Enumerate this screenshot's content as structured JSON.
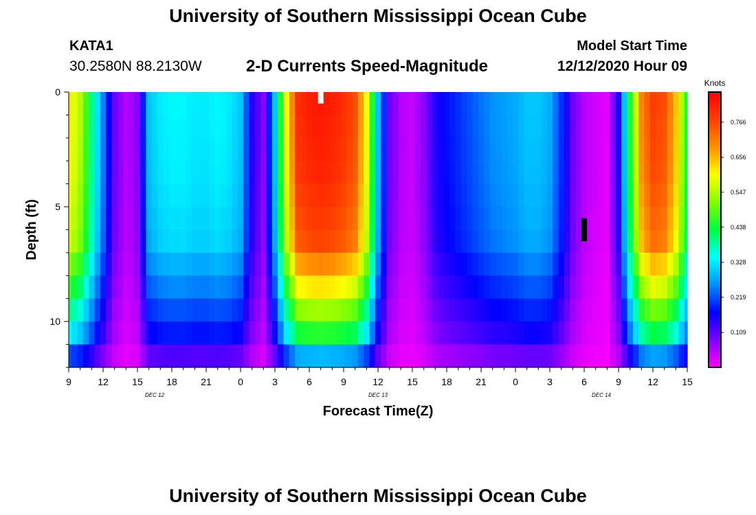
{
  "header": {
    "title": "University of Southern Mississippi Ocean Cube",
    "station": "KATA1",
    "coords": "30.2580N 88.2130W",
    "chart_title": "2-D Currents Speed-Magnitude",
    "start_label": "Model Start Time",
    "start_value": "12/12/2020 Hour 09"
  },
  "footer": {
    "title": "University of Southern Mississippi Ocean Cube"
  },
  "chart_data": {
    "type": "heatmap",
    "title": "2-D Currents Speed-Magnitude",
    "xlabel": "Forecast Time(Z)",
    "ylabel": "Depth (ft)",
    "units": "Knots",
    "x_range_hours": [
      0,
      54
    ],
    "ylim": [
      0,
      12
    ],
    "y_inverted": true,
    "x_ticks": [
      "9",
      "12",
      "15",
      "18",
      "21",
      "0",
      "3",
      "6",
      "9",
      "12",
      "15",
      "18",
      "21",
      "0",
      "3",
      "6",
      "9",
      "12",
      "15"
    ],
    "y_ticks": [
      "0",
      "5",
      "10"
    ],
    "y_tick_values": [
      0,
      5,
      10
    ],
    "date_labels": [
      {
        "text": "DEC 12",
        "hour": 7.5
      },
      {
        "text": "DEC 13",
        "hour": 27
      },
      {
        "text": "DEC 14",
        "hour": 46.5
      }
    ],
    "colorbar": {
      "ticks": [
        "0.766",
        "0.656",
        "0.547",
        "0.438",
        "0.328",
        "0.219",
        "0.109"
      ],
      "tick_values": [
        0.766,
        0.656,
        0.547,
        0.438,
        0.328,
        0.219,
        0.109
      ],
      "min": 0.0,
      "max": 0.86
    },
    "colormap": [
      "#ff00ff",
      "#8000ff",
      "#0000ff",
      "#0090ff",
      "#00ffff",
      "#00ff40",
      "#80ff00",
      "#ffff00",
      "#ff9000",
      "#ff4000",
      "#ff0000"
    ],
    "depth_rows": [
      0.5,
      1.5,
      2.5,
      3.5,
      4.5,
      5.5,
      6.5,
      7.5,
      8.5,
      9.5,
      10.5,
      11.5
    ],
    "surface_profile": {
      "hours": [
        0,
        1,
        2,
        3,
        4,
        5,
        6,
        7,
        8,
        9,
        10,
        11,
        12,
        13,
        14,
        15,
        16,
        17,
        18,
        19,
        20,
        21,
        22,
        23,
        24,
        25,
        26,
        27,
        28,
        29,
        30,
        31,
        32,
        33,
        34,
        35,
        36,
        37,
        38,
        39,
        40,
        41,
        42,
        43,
        44,
        45,
        46,
        47,
        48,
        49,
        50,
        51,
        52,
        53,
        54
      ],
      "knots": [
        0.62,
        0.55,
        0.4,
        0.25,
        0.1,
        0.05,
        0.08,
        0.3,
        0.33,
        0.34,
        0.34,
        0.33,
        0.33,
        0.34,
        0.33,
        0.3,
        0.15,
        0.08,
        0.3,
        0.6,
        0.8,
        0.82,
        0.83,
        0.82,
        0.8,
        0.76,
        0.6,
        0.3,
        0.1,
        0.05,
        0.04,
        0.08,
        0.15,
        0.18,
        0.2,
        0.22,
        0.24,
        0.26,
        0.27,
        0.28,
        0.3,
        0.3,
        0.28,
        0.2,
        0.1,
        0.05,
        0.03,
        0.02,
        0.15,
        0.45,
        0.7,
        0.78,
        0.76,
        0.65,
        0.45
      ]
    },
    "depth_trend": [
      {
        "depth": 0.5,
        "factor": 1.0
      },
      {
        "depth": 3.5,
        "factor": 0.98
      },
      {
        "depth": 6.5,
        "factor": 0.93
      },
      {
        "depth": 8.5,
        "factor": 0.75
      },
      {
        "depth": 10.5,
        "factor": 0.55
      },
      {
        "depth": 11.5,
        "factor": 0.35
      }
    ],
    "markers": [
      {
        "color": "#ffffff",
        "hour": 22,
        "depth_from": 0.0,
        "depth_to": 0.5
      },
      {
        "color": "#000000",
        "hour": 45,
        "depth_from": 5.5,
        "depth_to": 6.5
      }
    ]
  }
}
